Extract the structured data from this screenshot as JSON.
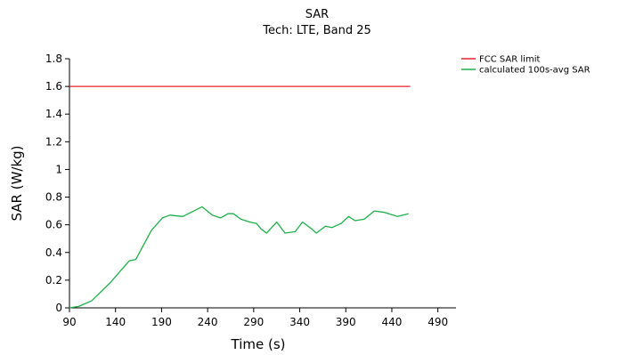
{
  "chart_data": {
    "type": "line",
    "title": "SAR",
    "subtitle": "Tech: LTE, Band 25",
    "xlabel": "Time (s)",
    "ylabel": "SAR (W/kg)",
    "xlim": [
      90,
      500
    ],
    "ylim": [
      0,
      1.8
    ],
    "xticks": [
      90,
      140,
      190,
      240,
      290,
      340,
      390,
      440,
      490
    ],
    "yticks": [
      0,
      0.2,
      0.4,
      0.6,
      0.8,
      1,
      1.2,
      1.4,
      1.6,
      1.8
    ],
    "xtick_labels": [
      "90",
      "140",
      "190",
      "240",
      "290",
      "340",
      "390",
      "440",
      "490"
    ],
    "ytick_labels": [
      "0",
      "0.2",
      "0.4",
      "0.6",
      "0.8",
      "1",
      "1.2",
      "1.4",
      "1.6",
      "1.8"
    ],
    "grid": false,
    "legend_position": "top-right",
    "series": [
      {
        "name": "FCC SAR limit",
        "color": "#e8202a",
        "x": [
          90,
          460
        ],
        "y": [
          1.6,
          1.6
        ]
      },
      {
        "name": "calculated 100s-avg SAR",
        "color": "#1fb04a",
        "x": [
          90,
          100,
          114,
          134,
          155,
          162,
          179,
          191,
          199,
          213,
          234,
          245,
          254,
          262,
          268,
          276,
          286,
          293,
          298,
          304,
          315,
          324,
          335,
          343,
          353,
          358,
          368,
          375,
          385,
          393,
          400,
          410,
          421,
          432,
          446,
          458
        ],
        "y": [
          0,
          0.01,
          0.05,
          0.18,
          0.34,
          0.35,
          0.56,
          0.65,
          0.67,
          0.66,
          0.73,
          0.67,
          0.65,
          0.68,
          0.68,
          0.64,
          0.62,
          0.61,
          0.57,
          0.54,
          0.62,
          0.54,
          0.55,
          0.62,
          0.57,
          0.54,
          0.59,
          0.58,
          0.61,
          0.66,
          0.63,
          0.64,
          0.7,
          0.69,
          0.66,
          0.68
        ]
      }
    ]
  }
}
